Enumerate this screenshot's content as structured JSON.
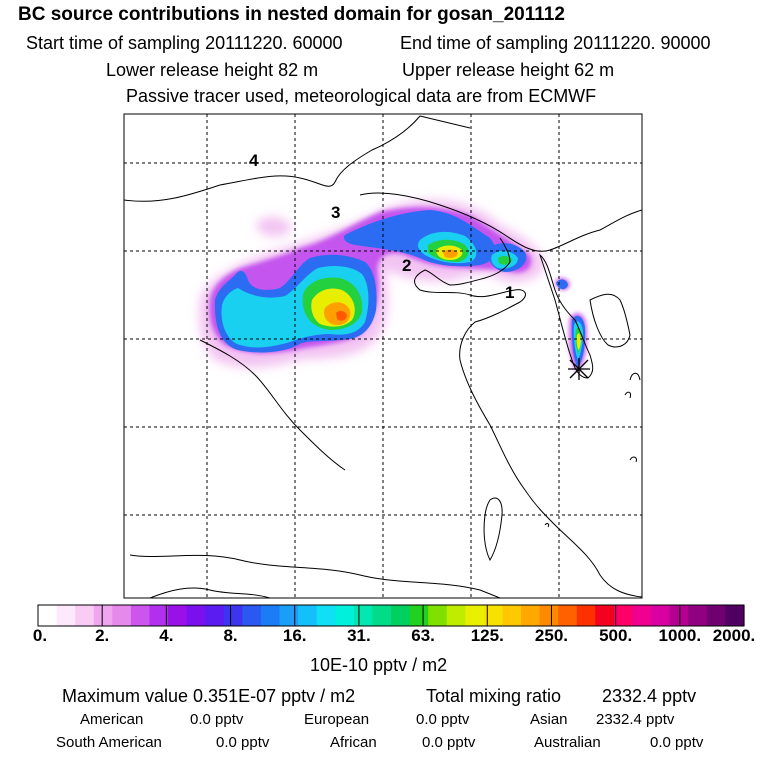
{
  "title": "BC  source contributions in nested domain for gosan_201112",
  "header": {
    "start_label": "Start time of sampling 20111220. 60000",
    "end_label": "End time of sampling 20111220. 90000",
    "lower_label": "Lower release height   82 m",
    "upper_label": "Upper release height   62 m",
    "tracer_note": "Passive tracer used, meteorological data are from ECMWF"
  },
  "map": {
    "region_labels": [
      "4",
      "3",
      "2",
      "1"
    ],
    "receptor": "gosan"
  },
  "chart_data": {
    "type": "heatmap",
    "title": "BC  source contributions in nested domain for gosan_201112",
    "colorbar": {
      "ticks": [
        "0.",
        "2.",
        "4.",
        "8.",
        "16.",
        "31.",
        "63.",
        "125.",
        "250.",
        "500.",
        "1000.",
        "2000."
      ],
      "unit_label": "10E-10 pptv / m2",
      "colors": [
        "#ffffff",
        "#fde8fc",
        "#f9ccf6",
        "#f0a6ef",
        "#e58aec",
        "#cc55ee",
        "#b22fee",
        "#9a10e8",
        "#7a10ee",
        "#5a1cf0",
        "#3c34f0",
        "#2c58f2",
        "#1c7cf5",
        "#1a9ef8",
        "#14c0fa",
        "#0fe0f6",
        "#00f0dc",
        "#00e8b0",
        "#00dc88",
        "#00d060",
        "#22d020",
        "#80e000",
        "#c0ec00",
        "#e8f000",
        "#f8e000",
        "#ffc800",
        "#ffa800",
        "#ff8a00",
        "#ff6000",
        "#ff3000",
        "#f40020",
        "#ff0066",
        "#f00090",
        "#d800a0",
        "#b40090",
        "#900080",
        "#700070",
        "#500060"
      ]
    },
    "maximum_value": "0.351E-07 pptv / m2",
    "total_mixing_ratio": "2332.4 pptv",
    "contributions": [
      {
        "region": "American",
        "value": "0.0 pptv"
      },
      {
        "region": "European",
        "value": "0.0 pptv"
      },
      {
        "region": "Asian",
        "value": "2332.4 pptv"
      },
      {
        "region": "South American",
        "value": "0.0 pptv"
      },
      {
        "region": "African",
        "value": "0.0 pptv"
      },
      {
        "region": "Australian",
        "value": "0.0 pptv"
      }
    ]
  },
  "footer": {
    "max_label": "Maximum value  0.351E-07 pptv / m2",
    "total_label": "Total mixing ratio",
    "total_value": "2332.4 pptv"
  }
}
